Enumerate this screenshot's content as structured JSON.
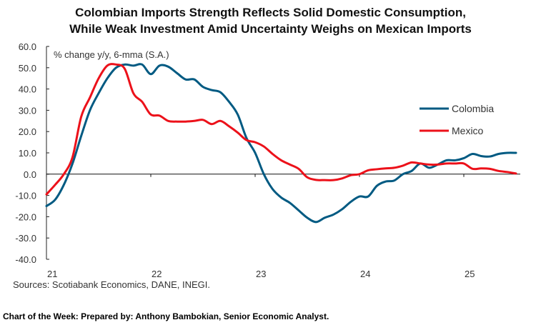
{
  "chart_data": {
    "type": "line",
    "title_lines": [
      "Colombian Imports Strength Reflects Solid Domestic Consumption,",
      "While Weak Investment Amid Uncertainty Weighs on Mexican Imports"
    ],
    "ylabel": "% change y/y, 6-mma (S.A.)",
    "ylim": [
      -40,
      60
    ],
    "yticks": [
      "60.0",
      "50.0",
      "40.0",
      "30.0",
      "20.0",
      "10.0",
      "0.0",
      "-10.0",
      "-20.0",
      "-30.0",
      "-40.0"
    ],
    "xticks": [
      "21",
      "22",
      "23",
      "24",
      "25"
    ],
    "x_start": "2021-01",
    "x_frequency": "monthly",
    "legend_position": "right",
    "grid": false,
    "series": [
      {
        "name": "Colombia",
        "color": "#005a82",
        "values": [
          -15,
          -12,
          -5,
          5,
          18,
          30,
          38,
          45,
          50,
          51.5,
          51,
          51.5,
          47,
          51,
          50.5,
          47.5,
          44.5,
          44.5,
          41,
          39.5,
          38.5,
          34,
          28,
          17,
          10,
          0,
          -7,
          -11,
          -13.5,
          -17,
          -20.5,
          -22.5,
          -20.5,
          -19,
          -16.5,
          -13,
          -10.5,
          -10.5,
          -5.5,
          -3.5,
          -3,
          0,
          1.5,
          5,
          3,
          4.5,
          6.5,
          6.5,
          7.5,
          9.5,
          8.5,
          8.3,
          9.5,
          10,
          10
        ]
      },
      {
        "name": "Mexico",
        "color": "#ec111a",
        "values": [
          -9.5,
          -5,
          0,
          8,
          27,
          36,
          45,
          51,
          51.5,
          49.5,
          38,
          34,
          28,
          27.5,
          25,
          24.7,
          24.7,
          25,
          25.5,
          23.5,
          25,
          22.5,
          19.5,
          16,
          15,
          13,
          9.5,
          6.5,
          4.5,
          2.5,
          -1.5,
          -2.7,
          -2.8,
          -2.8,
          -2,
          -0.5,
          0,
          1.8,
          2.3,
          2.7,
          3,
          4,
          5.5,
          5,
          4.5,
          4.5,
          5,
          5,
          5,
          2.5,
          2.7,
          2.5,
          1.5,
          1,
          0.3
        ]
      }
    ]
  },
  "source": "Sources: Scotiabank Economics, DANE, INEGI.",
  "footer": "Chart of the Week:  Prepared by: Anthony Bambokian, Senior Economic Analyst."
}
